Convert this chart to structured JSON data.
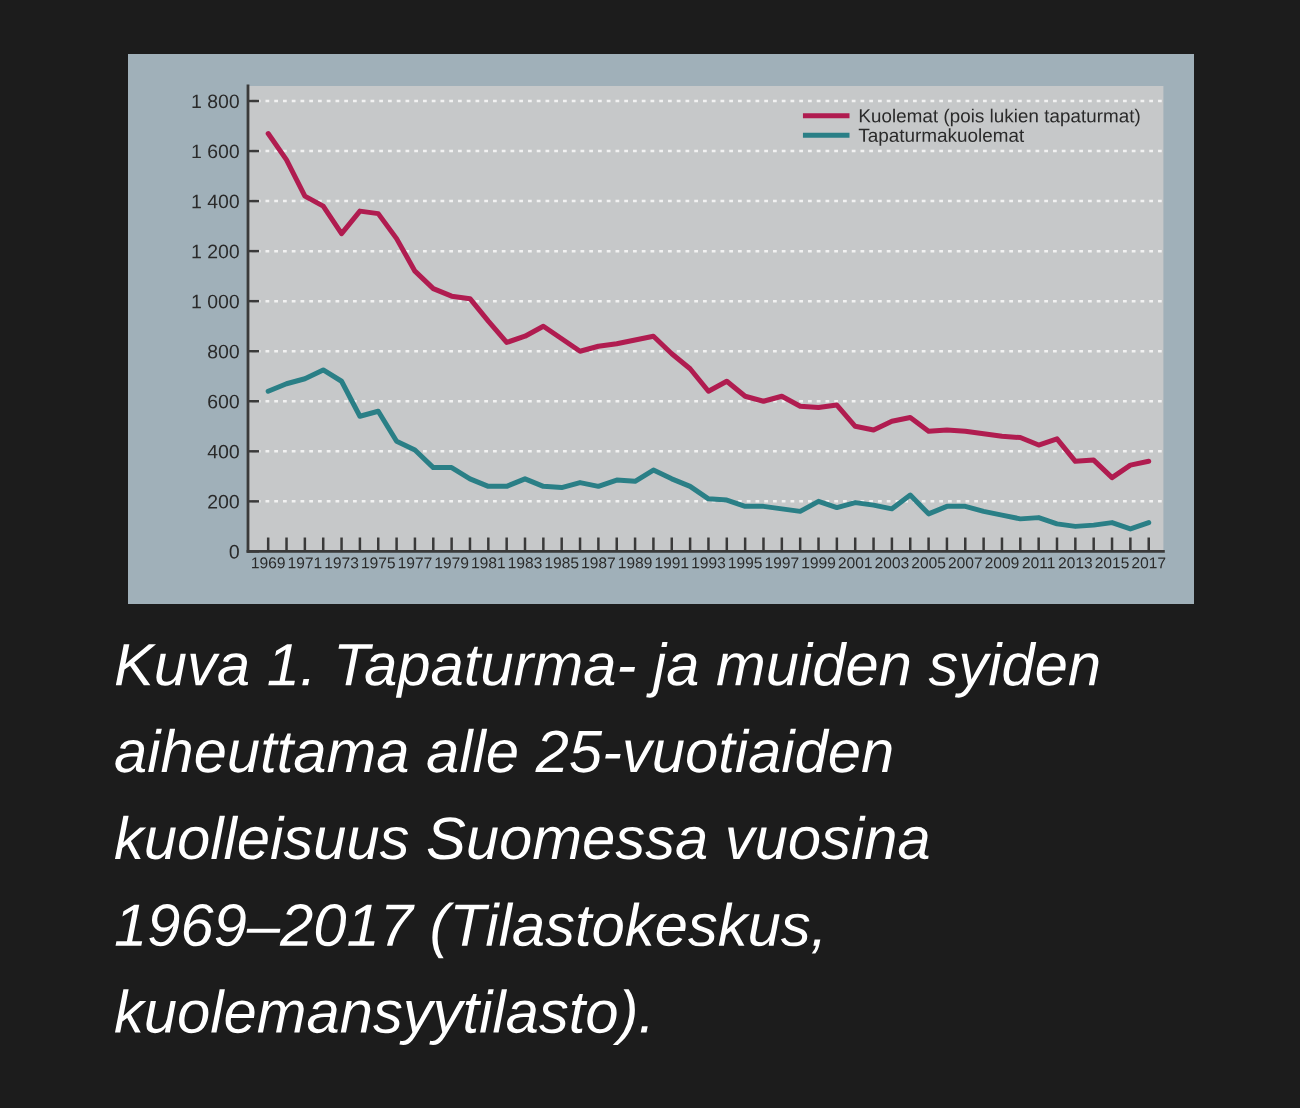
{
  "chart_data": {
    "type": "line",
    "x": [
      1969,
      1970,
      1971,
      1972,
      1973,
      1974,
      1975,
      1976,
      1977,
      1978,
      1979,
      1980,
      1981,
      1982,
      1983,
      1984,
      1985,
      1986,
      1987,
      1988,
      1989,
      1990,
      1991,
      1992,
      1993,
      1994,
      1995,
      1996,
      1997,
      1998,
      1999,
      2000,
      2001,
      2002,
      2003,
      2004,
      2005,
      2006,
      2007,
      2008,
      2009,
      2010,
      2011,
      2012,
      2013,
      2014,
      2015,
      2016,
      2017
    ],
    "series": [
      {
        "name": "Kuolemat (pois lukien tapaturmat)",
        "color": "#b01c50",
        "values": [
          1670,
          1565,
          1420,
          1380,
          1270,
          1360,
          1350,
          1250,
          1120,
          1050,
          1020,
          1010,
          920,
          835,
          860,
          900,
          850,
          800,
          820,
          830,
          845,
          860,
          790,
          730,
          640,
          680,
          620,
          600,
          620,
          580,
          575,
          585,
          500,
          485,
          520,
          535,
          480,
          485,
          480,
          470,
          460,
          455,
          425,
          450,
          360,
          365,
          295,
          345,
          360
        ]
      },
      {
        "name": "Tapaturmakuolemat",
        "color": "#2a7f86",
        "values": [
          640,
          670,
          690,
          725,
          680,
          540,
          560,
          440,
          405,
          335,
          335,
          290,
          260,
          260,
          290,
          260,
          255,
          275,
          260,
          285,
          280,
          325,
          290,
          260,
          210,
          205,
          180,
          180,
          170,
          160,
          200,
          175,
          195,
          185,
          170,
          225,
          150,
          180,
          180,
          160,
          145,
          130,
          135,
          110,
          100,
          105,
          115,
          90,
          115
        ]
      }
    ],
    "xlim": [
      1967.9,
      2017.8
    ],
    "xticks": [
      1969,
      {
        "value": 1970,
        "label": null
      },
      1971,
      {
        "value": 1972,
        "label": null
      },
      1973,
      {
        "value": 1974,
        "label": null
      },
      1975,
      {
        "value": 1976,
        "label": null
      },
      1977,
      {
        "value": 1978,
        "label": null
      },
      1979,
      {
        "value": 1980,
        "label": null
      },
      1981,
      {
        "value": 1982,
        "label": null
      },
      1983,
      {
        "value": 1984,
        "label": null
      },
      1985,
      {
        "value": 1986,
        "label": null
      },
      1987,
      {
        "value": 1988,
        "label": null
      },
      1989,
      {
        "value": 1990,
        "label": null
      },
      1991,
      {
        "value": 1992,
        "label": null
      },
      1993,
      {
        "value": 1994,
        "label": null
      },
      1995,
      {
        "value": 1996,
        "label": null
      },
      1997,
      {
        "value": 1998,
        "label": null
      },
      1999,
      {
        "value": 2000,
        "label": null
      },
      2001,
      {
        "value": 2002,
        "label": null
      },
      2003,
      {
        "value": 2004,
        "label": null
      },
      2005,
      {
        "value": 2006,
        "label": null
      },
      2007,
      {
        "value": 2008,
        "label": null
      },
      2009,
      {
        "value": 2010,
        "label": null
      },
      2011,
      {
        "value": 2012,
        "label": null
      },
      2013,
      {
        "value": 2014,
        "label": null
      },
      2015,
      {
        "value": 2016,
        "label": null
      },
      2017
    ],
    "ylim": [
      0,
      1860
    ],
    "yticks": [
      0,
      200,
      400,
      600,
      800,
      {
        "value": 1000,
        "label": "1 000"
      },
      {
        "value": 1200,
        "label": "1 200"
      },
      {
        "value": 1400,
        "label": "1 400"
      },
      {
        "value": 1600,
        "label": "1 600"
      },
      {
        "value": 1800,
        "label": "1 800"
      }
    ],
    "grid": "y",
    "legend": "top right",
    "annotations": [
      "Kuva 1. Tapaturma- ja muiden syiden\naiheuttama alle 25-vuotiaiden\nkuolleisuus Suomessa vuosina\n1969–2017 (Tilastokeskus,\nkuolemansyytilasto)."
    ]
  }
}
